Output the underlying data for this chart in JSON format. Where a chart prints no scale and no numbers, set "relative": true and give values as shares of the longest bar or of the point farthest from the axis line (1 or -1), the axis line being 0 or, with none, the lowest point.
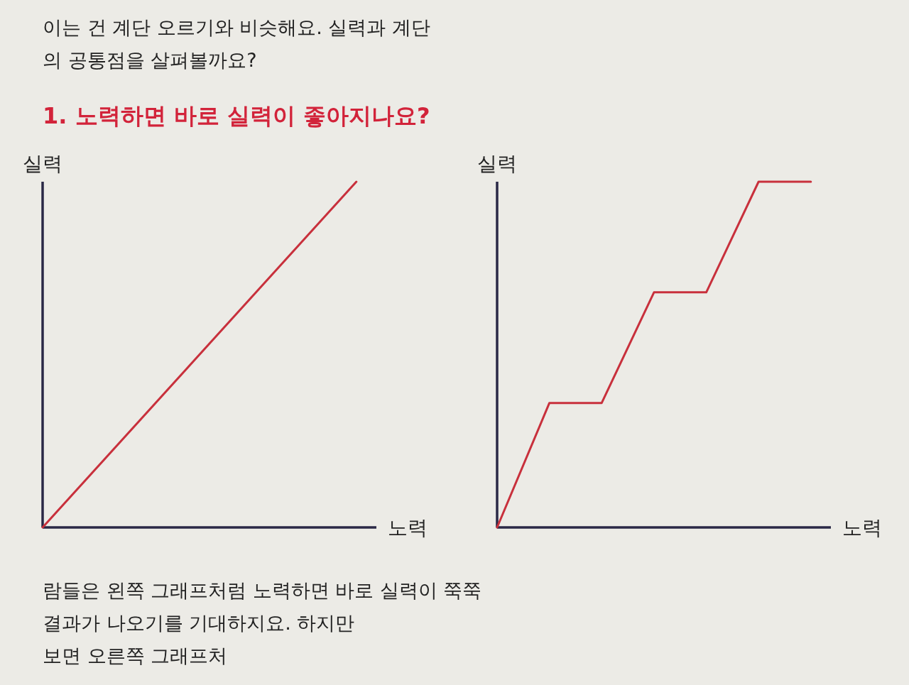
{
  "chart_data": [
    {
      "type": "other",
      "annotations": [
        "이는 건 계단 오르기와 비슷해요. 실력과 계단",
        "의 공통점을 살펴볼까요?"
      ]
    },
    {
      "type": "line",
      "title": "1. 노력하면 바로 실력이 좋아지나요?",
      "xlabel": "노력",
      "ylabel": "실력",
      "relative": true,
      "categories": [
        null,
        null
      ],
      "series": [
        {
          "color": "#c8303c",
          "values": [
            0,
            1
          ]
        }
      ]
    },
    {
      "type": "line",
      "xlabel": "노력",
      "ylabel": "실력",
      "relative": true,
      "categories": [
        null,
        null,
        null,
        null,
        null,
        null,
        null
      ],
      "series": [
        {
          "color": "#c8303c",
          "values": [
            0,
            0.36,
            0.36,
            0.68,
            0.68,
            1,
            1
          ]
        }
      ]
    },
    {
      "type": "other",
      "annotations": [
        "람들은 왼쪽 그래프처럼 노력하면 바로 실력이 쭉쭉",
        "결과가 나오기를 기대하지요. 하지만",
        "보면 오른쪽 그래프처"
      ]
    }
  ]
}
